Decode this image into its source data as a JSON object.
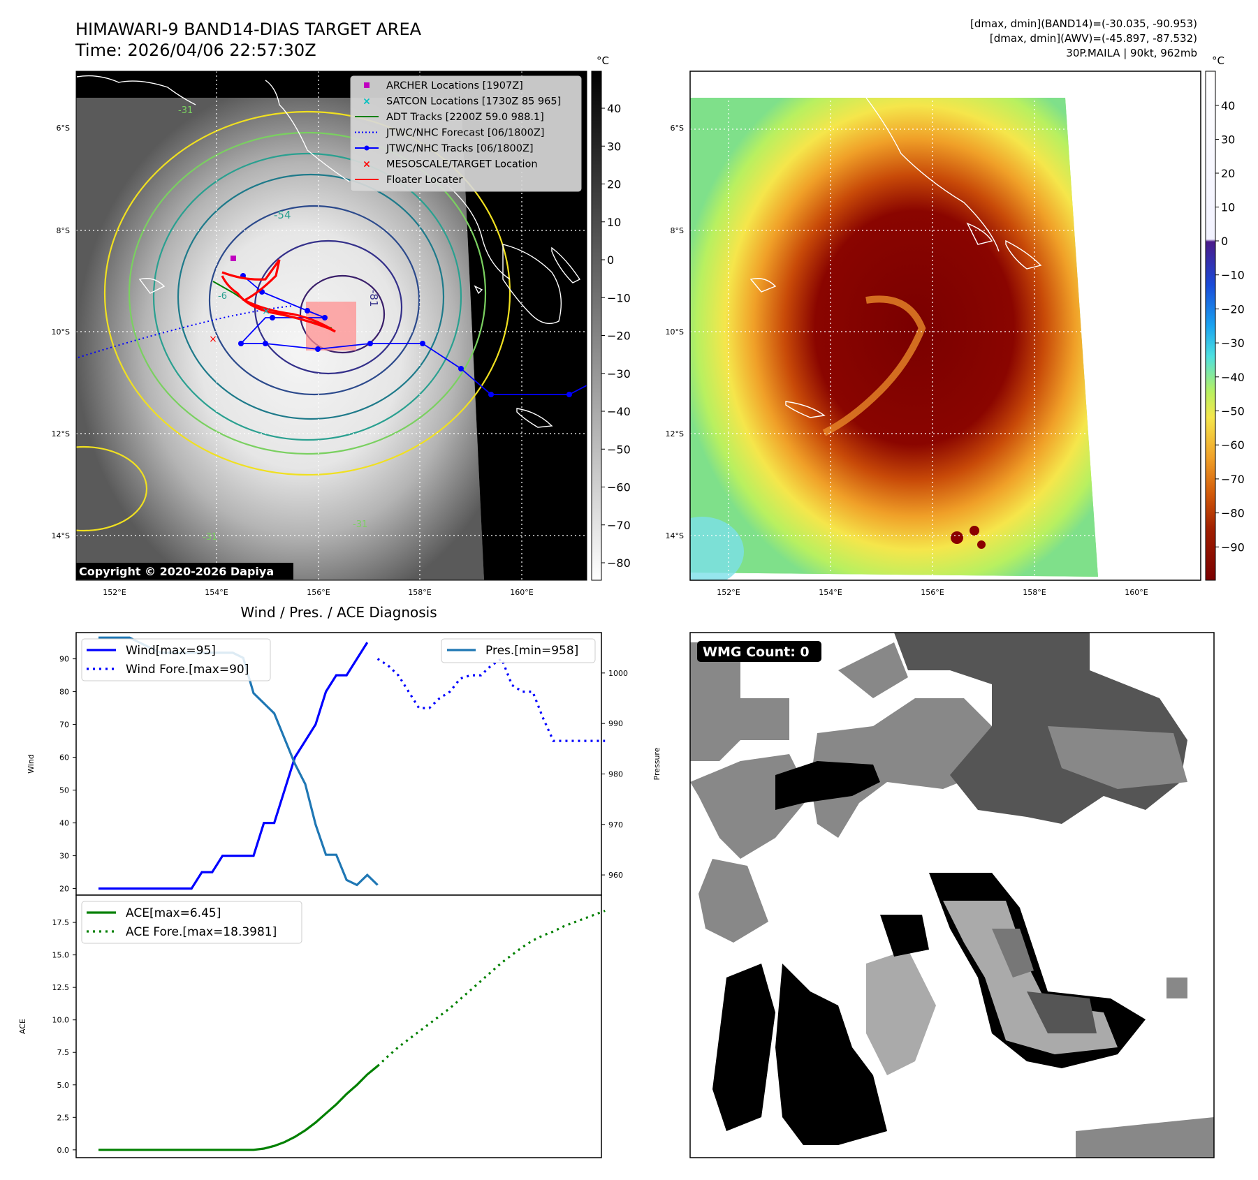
{
  "header": {
    "title": "HIMAWARI-9 BAND14-DIAS TARGET AREA",
    "time": "Time: 2026/04/06 22:57:30Z",
    "dmax_band14": "[dmax, dmin](BAND14)=(-30.035, -90.953)",
    "dmax_awv": "[dmax, dmin](AWV)=(-45.897, -87.532)",
    "storm": "30P.MAILA | 90kt, 962mb"
  },
  "map": {
    "lat_labels": [
      "6°S",
      "8°S",
      "10°S",
      "12°S",
      "14°S"
    ],
    "lon_labels": [
      "152°E",
      "154°E",
      "156°E",
      "158°E",
      "160°E"
    ],
    "copyright": "Copyright © 2020-2026 Dapiya",
    "contour_labels": [
      "-54",
      "-81",
      "-31",
      "-31",
      "-31",
      "-6"
    ]
  },
  "legend": {
    "items": [
      {
        "label": "ARCHER Locations [1907Z]",
        "color": "#c000c0",
        "marker": "square"
      },
      {
        "label": "SATCON Locations [1730Z 85 965]",
        "color": "#00c0c0",
        "marker": "x"
      },
      {
        "label": "ADT Tracks [2200Z 59.0 988.1]",
        "color": "#008000",
        "marker": "line"
      },
      {
        "label": "JTWC/NHC Forecast [06/1800Z]",
        "color": "#0000ff",
        "marker": "dotted"
      },
      {
        "label": "JTWC/NHC Tracks [06/1800Z]",
        "color": "#0000ff",
        "marker": "line-dot"
      },
      {
        "label": "MESOSCALE/TARGET Location",
        "color": "#ff0000",
        "marker": "x"
      },
      {
        "label": "Floater Locater",
        "color": "#ff0000",
        "marker": "line"
      }
    ]
  },
  "colorbars": {
    "unit": "°C",
    "gray_ticks": [
      "40",
      "30",
      "20",
      "10",
      "0",
      "−10",
      "−20",
      "−30",
      "−40",
      "−50",
      "−60",
      "−70",
      "−80"
    ],
    "color_ticks": [
      "40",
      "30",
      "20",
      "10",
      "0",
      "−10",
      "−20",
      "−30",
      "−40",
      "−50",
      "−60",
      "−70",
      "−80",
      "−90"
    ],
    "color_stops": [
      "#ffffff",
      "#4b1a8a",
      "#1a4bd9",
      "#1aa3f0",
      "#4de0e0",
      "#b8f060",
      "#f5e64b",
      "#f0a028",
      "#d25a0a",
      "#a01e00",
      "#7a0000"
    ]
  },
  "wmg": {
    "label": "WMG Count: 0"
  },
  "chart_data": [
    {
      "type": "line",
      "title": "Wind / Pres. / ACE Diagnosis",
      "ylabel": "Wind",
      "ylabel_right": "Pressure",
      "ylim": [
        18,
        98
      ],
      "ylim_right": [
        956,
        1008
      ],
      "yticks": [
        "90",
        "80",
        "70",
        "60",
        "50",
        "40",
        "30",
        "20"
      ],
      "yticks_right": [
        "1000",
        "990",
        "980",
        "970",
        "960"
      ],
      "legend_left": [
        "Wind[max=95]",
        "Wind Fore.[max=90]"
      ],
      "legend_right": [
        "Pres.[min=958]"
      ],
      "series": [
        {
          "name": "Wind[max=95]",
          "style": "solid",
          "color": "#0000ff",
          "x": [
            0,
            1,
            2,
            3,
            4,
            5,
            6,
            7,
            8,
            9,
            10,
            11,
            12,
            13,
            14,
            15,
            16,
            17,
            18,
            19,
            20,
            21,
            22,
            23,
            24,
            25,
            26
          ],
          "values": [
            20,
            20,
            20,
            20,
            20,
            20,
            20,
            20,
            20,
            20,
            25,
            25,
            30,
            30,
            30,
            30,
            40,
            40,
            50,
            60,
            65,
            70,
            80,
            85,
            85,
            90,
            95
          ]
        },
        {
          "name": "Wind Fore.[max=90]",
          "style": "dotted",
          "color": "#0000ff",
          "x": [
            27,
            28,
            29,
            30,
            31,
            32,
            33,
            34,
            35,
            36,
            37,
            38,
            39,
            40,
            41,
            42,
            43,
            44,
            45,
            46,
            47,
            48,
            49
          ],
          "values": [
            90,
            88,
            85,
            80,
            75,
            75,
            78,
            80,
            84,
            85,
            85,
            88,
            90,
            82,
            80,
            80,
            72,
            65,
            65,
            65,
            65,
            65,
            65
          ]
        },
        {
          "name": "Pres.[min=958]",
          "style": "solid",
          "color": "#1f77b4",
          "x": [
            0,
            1,
            2,
            3,
            4,
            5,
            6,
            7,
            8,
            9,
            10,
            11,
            12,
            13,
            14,
            15,
            16,
            17,
            18,
            19,
            20,
            21,
            22,
            23,
            24,
            25,
            26,
            27
          ],
          "values": [
            1007,
            1007,
            1007,
            1007,
            1006,
            1005,
            1004,
            1004,
            1004,
            1004,
            1004,
            1004,
            1004,
            1004,
            1003,
            996,
            994,
            992,
            987,
            982,
            978,
            970,
            964,
            964,
            959,
            958,
            960,
            958
          ]
        }
      ]
    },
    {
      "type": "line",
      "ylabel": "ACE",
      "ylim": [
        -0.6,
        19.6
      ],
      "yticks": [
        "17.5",
        "15.0",
        "12.5",
        "10.0",
        "7.5",
        "5.0",
        "2.5",
        "0.0"
      ],
      "legend": [
        "ACE[max=6.45]",
        "ACE Fore.[max=18.3981]"
      ],
      "series": [
        {
          "name": "ACE[max=6.45]",
          "style": "solid",
          "color": "#008000",
          "x": [
            0,
            2,
            4,
            6,
            8,
            10,
            12,
            14,
            15,
            16,
            17,
            18,
            19,
            20,
            21,
            22,
            23,
            24,
            25,
            26,
            27
          ],
          "values": [
            0,
            0,
            0,
            0,
            0,
            0,
            0,
            0,
            0,
            0.1,
            0.3,
            0.6,
            1.0,
            1.5,
            2.1,
            2.8,
            3.5,
            4.3,
            5.0,
            5.8,
            6.45
          ]
        },
        {
          "name": "ACE Fore.[max=18.3981]",
          "style": "dotted",
          "color": "#008000",
          "x": [
            27,
            28,
            29,
            30,
            31,
            32,
            33,
            34,
            35,
            36,
            37,
            38,
            39,
            40,
            41,
            42,
            43,
            44,
            45,
            46,
            47,
            48,
            49
          ],
          "values": [
            6.45,
            7.2,
            7.9,
            8.5,
            9.1,
            9.7,
            10.3,
            10.9,
            11.6,
            12.3,
            13.0,
            13.7,
            14.4,
            15.0,
            15.6,
            16.1,
            16.5,
            16.8,
            17.2,
            17.5,
            17.8,
            18.1,
            18.3981
          ]
        }
      ]
    }
  ]
}
